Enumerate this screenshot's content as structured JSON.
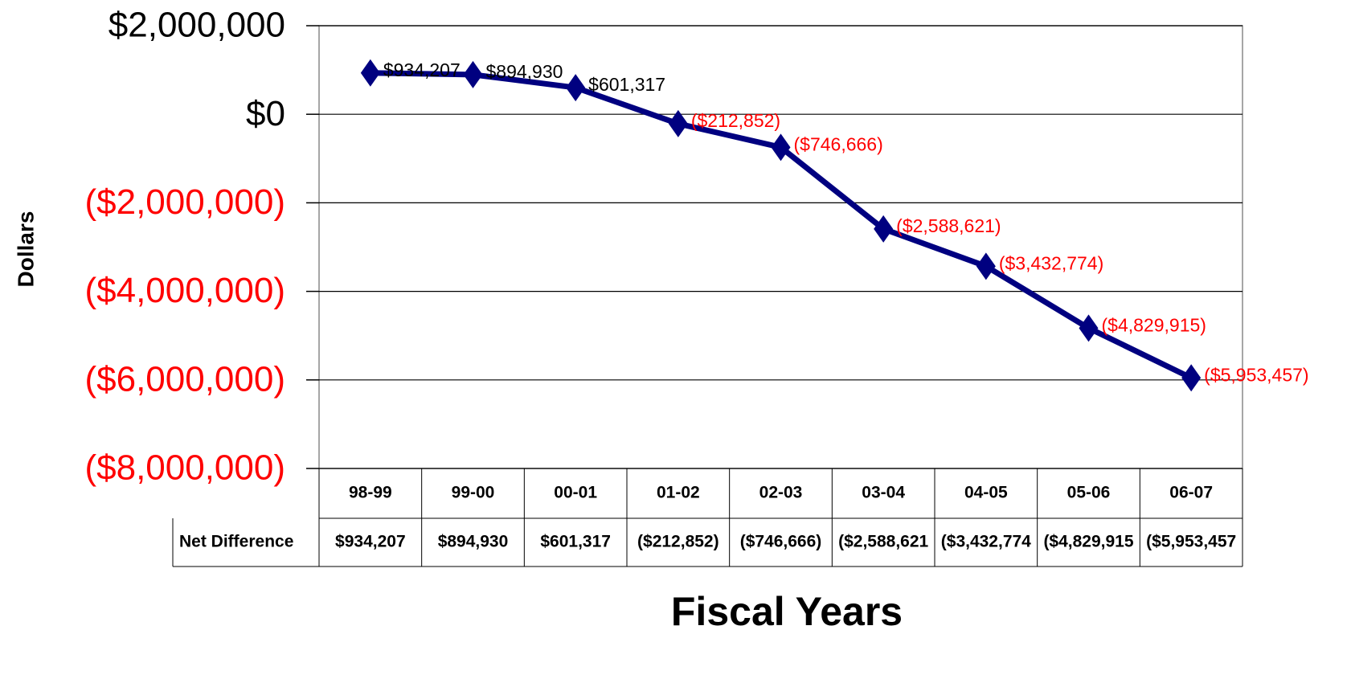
{
  "chart_data": {
    "type": "line",
    "x_label": "Fiscal Years",
    "y_label": "Dollars",
    "categories": [
      "98-99",
      "99-00",
      "00-01",
      "01-02",
      "02-03",
      "03-04",
      "04-05",
      "05-06",
      "06-07"
    ],
    "series": [
      {
        "name": "Net Difference",
        "color": "#000080",
        "values": [
          934207,
          894930,
          601317,
          -212852,
          -746666,
          -2588621,
          -3432774,
          -4829915,
          -5953457
        ],
        "value_labels": [
          "$934,207",
          "$894,930",
          "$601,317",
          "($212,852)",
          "($746,666)",
          "($2,588,621)",
          "($3,432,774)",
          "($4,829,915)",
          "($5,953,457)"
        ],
        "table_labels": [
          "$934,207",
          "$894,930",
          "$601,317",
          "($212,852)",
          "($746,666)",
          "($2,588,621",
          "($3,432,774",
          "($4,829,915",
          "($5,953,457"
        ]
      }
    ],
    "ylim": [
      -8000000,
      2000000
    ],
    "yticks": [
      {
        "value": 2000000,
        "label": "$2,000,000"
      },
      {
        "value": 0,
        "label": "$0"
      },
      {
        "value": -2000000,
        "label": "($2,000,000)"
      },
      {
        "value": -4000000,
        "label": "($4,000,000)"
      },
      {
        "value": -6000000,
        "label": "($6,000,000)"
      },
      {
        "value": -8000000,
        "label": "($8,000,000)"
      }
    ],
    "grid": true,
    "negative_color": "#ff0000",
    "positive_color": "#000000"
  }
}
